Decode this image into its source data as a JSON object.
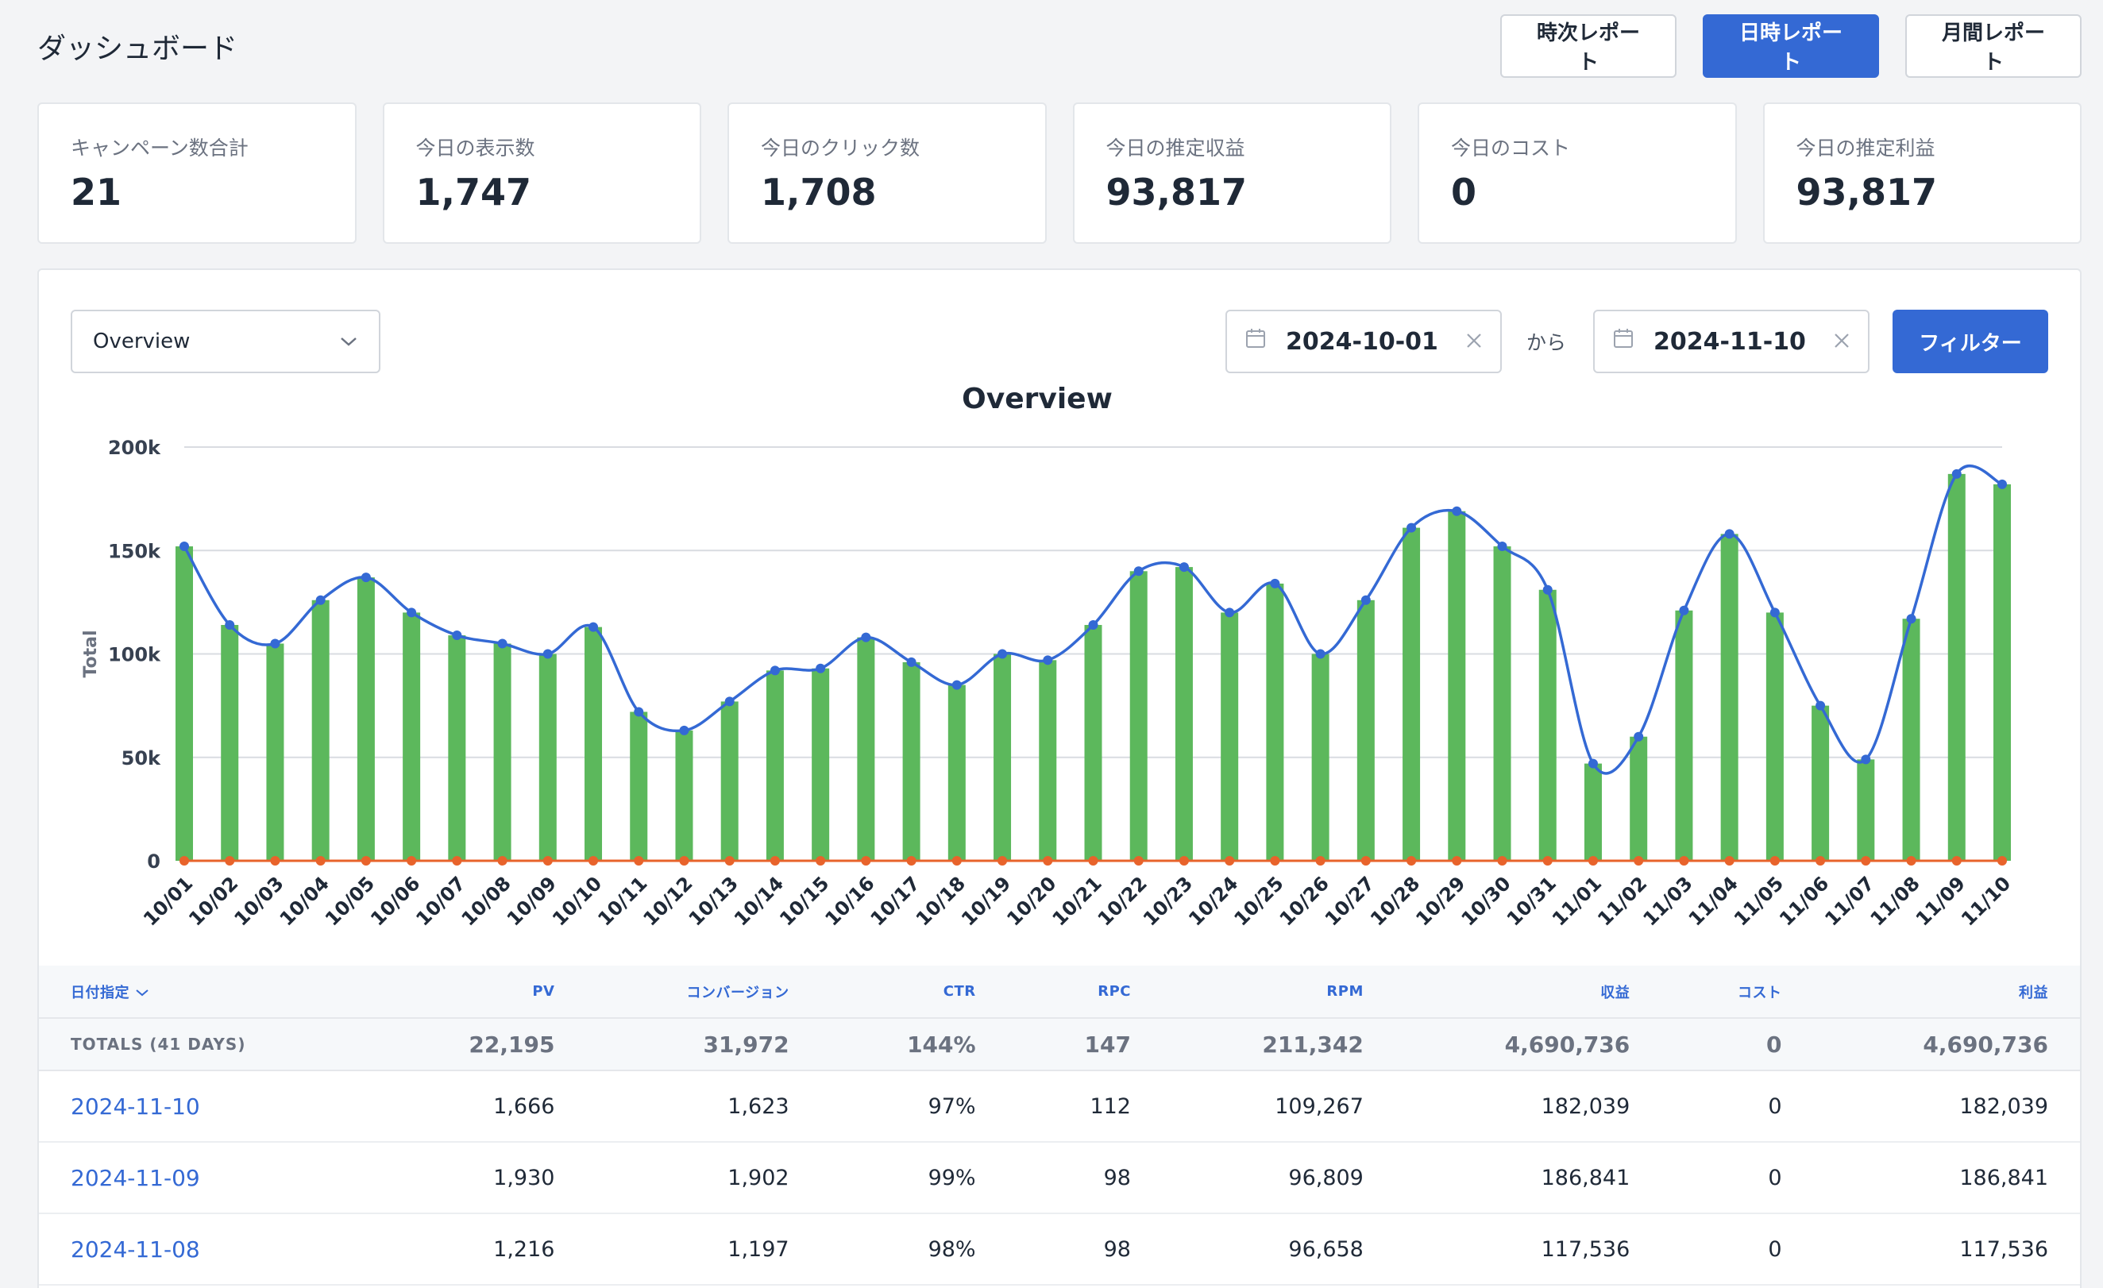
{
  "header": {
    "title": "ダッシュボード",
    "buttons": [
      {
        "label": "時次レポート",
        "primary": false
      },
      {
        "label": "日時レポート",
        "primary": true
      },
      {
        "label": "月間レポート",
        "primary": false
      }
    ]
  },
  "stats": [
    {
      "label": "キャンペーン数合計",
      "value": "21"
    },
    {
      "label": "今日の表示数",
      "value": "1,747"
    },
    {
      "label": "今日のクリック数",
      "value": "1,708"
    },
    {
      "label": "今日の推定収益",
      "value": "93,817"
    },
    {
      "label": "今日のコスト",
      "value": "0"
    },
    {
      "label": "今日の推定利益",
      "value": "93,817"
    }
  ],
  "filters": {
    "select_value": "Overview",
    "date_from": "2024-10-01",
    "separator": "から",
    "date_to": "2024-11-10",
    "filter_label": "フィルター"
  },
  "chart_data": {
    "type": "bar",
    "title": "Overview",
    "ylabel": "Total",
    "ylim": [
      0,
      200000
    ],
    "yticks": [
      "0",
      "50k",
      "100k",
      "150k",
      "200k"
    ],
    "grid": true,
    "categories": [
      "10/01",
      "10/02",
      "10/03",
      "10/04",
      "10/05",
      "10/06",
      "10/07",
      "10/08",
      "10/09",
      "10/10",
      "10/11",
      "10/12",
      "10/13",
      "10/14",
      "10/15",
      "10/16",
      "10/17",
      "10/18",
      "10/19",
      "10/20",
      "10/21",
      "10/22",
      "10/23",
      "10/24",
      "10/25",
      "10/26",
      "10/27",
      "10/28",
      "10/29",
      "10/30",
      "10/31",
      "11/01",
      "11/02",
      "11/03",
      "11/04",
      "11/05",
      "11/06",
      "11/07",
      "11/08",
      "11/09",
      "11/10"
    ],
    "series": [
      {
        "type": "bar",
        "color": "#5cb85c",
        "values": [
          152000,
          114000,
          105000,
          126000,
          137000,
          120000,
          109000,
          105000,
          100000,
          113000,
          72000,
          63000,
          77000,
          92000,
          93000,
          108000,
          96000,
          85000,
          100000,
          97000,
          114000,
          140000,
          142000,
          120000,
          134000,
          100000,
          126000,
          161000,
          169000,
          152000,
          131000,
          47000,
          60000,
          121000,
          158000,
          120000,
          75000,
          49000,
          117000,
          187000,
          182000
        ]
      },
      {
        "type": "line",
        "color": "#3469d4",
        "values": [
          152000,
          114000,
          105000,
          126000,
          137000,
          120000,
          109000,
          105000,
          100000,
          113000,
          72000,
          63000,
          77000,
          92000,
          93000,
          108000,
          96000,
          85000,
          100000,
          97000,
          114000,
          140000,
          142000,
          120000,
          134000,
          100000,
          126000,
          161000,
          169000,
          152000,
          131000,
          47000,
          60000,
          121000,
          158000,
          120000,
          75000,
          49000,
          117000,
          187000,
          182000
        ]
      },
      {
        "type": "line",
        "color": "#e8632b",
        "values": [
          0,
          0,
          0,
          0,
          0,
          0,
          0,
          0,
          0,
          0,
          0,
          0,
          0,
          0,
          0,
          0,
          0,
          0,
          0,
          0,
          0,
          0,
          0,
          0,
          0,
          0,
          0,
          0,
          0,
          0,
          0,
          0,
          0,
          0,
          0,
          0,
          0,
          0,
          0,
          0,
          0
        ]
      }
    ]
  },
  "table": {
    "headers": [
      "日付指定",
      "PV",
      "コンバージョン",
      "CTR",
      "RPC",
      "RPM",
      "収益",
      "コスト",
      "利益"
    ],
    "totals": [
      "TOTALS (41 DAYS)",
      "22,195",
      "31,972",
      "144%",
      "147",
      "211,342",
      "4,690,736",
      "0",
      "4,690,736"
    ],
    "rows": [
      [
        "2024-11-10",
        "1,666",
        "1,623",
        "97%",
        "112",
        "109,267",
        "182,039",
        "0",
        "182,039"
      ],
      [
        "2024-11-09",
        "1,930",
        "1,902",
        "99%",
        "98",
        "96,809",
        "186,841",
        "0",
        "186,841"
      ],
      [
        "2024-11-08",
        "1,216",
        "1,197",
        "98%",
        "98",
        "96,658",
        "117,536",
        "0",
        "117,536"
      ]
    ]
  }
}
